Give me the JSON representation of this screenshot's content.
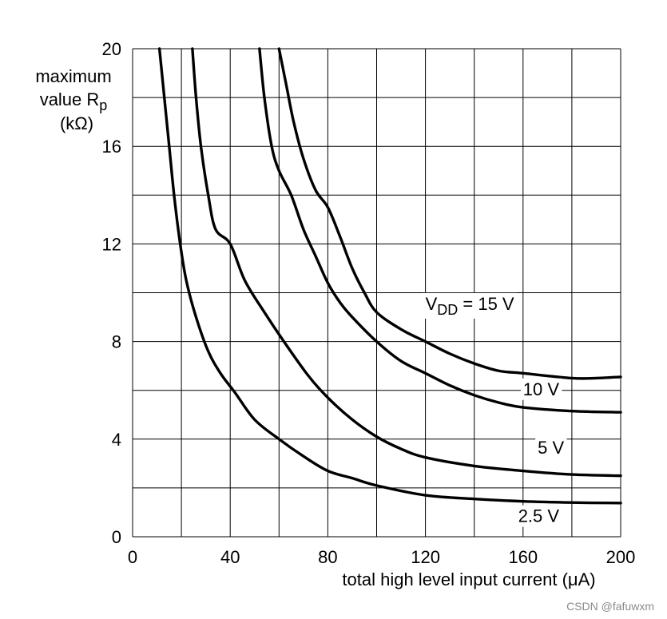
{
  "chart_data": {
    "type": "line",
    "y_label": {
      "line1": "maximum",
      "line2": "value R",
      "subscript": "p",
      "line3": "(kΩ)"
    },
    "x_label": "total high level input current (μA)",
    "xlim": [
      0,
      200
    ],
    "ylim": [
      0,
      20
    ],
    "x_ticks": [
      "0",
      "40",
      "80",
      "120",
      "160",
      "200"
    ],
    "y_ticks": [
      "0",
      "4",
      "8",
      "12",
      "16",
      "20"
    ],
    "grid": true,
    "grid_step": {
      "x": 20,
      "y": 2
    },
    "series": [
      {
        "name": "2.5 V",
        "values": [
          [
            11,
            20
          ],
          [
            13,
            18
          ],
          [
            15,
            16
          ],
          [
            17,
            14
          ],
          [
            19.5,
            12
          ],
          [
            22,
            10.5
          ],
          [
            26,
            9
          ],
          [
            31,
            7.6
          ],
          [
            36,
            6.7
          ],
          [
            42,
            5.9
          ],
          [
            50,
            4.8
          ],
          [
            60,
            4
          ],
          [
            70,
            3.3
          ],
          [
            80,
            2.7
          ],
          [
            90,
            2.4
          ],
          [
            100,
            2.1
          ],
          [
            120,
            1.7
          ],
          [
            140,
            1.55
          ],
          [
            160,
            1.45
          ],
          [
            180,
            1.4
          ],
          [
            200,
            1.38
          ]
        ]
      },
      {
        "name": "5 V",
        "values": [
          [
            24.5,
            20
          ],
          [
            26,
            18
          ],
          [
            28,
            16
          ],
          [
            31,
            14
          ],
          [
            34,
            12.6
          ],
          [
            40,
            12
          ],
          [
            46,
            10.5
          ],
          [
            54,
            9.2
          ],
          [
            62,
            8
          ],
          [
            72,
            6.6
          ],
          [
            80,
            5.7
          ],
          [
            90,
            4.8
          ],
          [
            100,
            4.1
          ],
          [
            110,
            3.6
          ],
          [
            120,
            3.25
          ],
          [
            140,
            2.9
          ],
          [
            160,
            2.7
          ],
          [
            180,
            2.55
          ],
          [
            200,
            2.5
          ]
        ]
      },
      {
        "name": "10 V",
        "values": [
          [
            52,
            20
          ],
          [
            54,
            18
          ],
          [
            57,
            16
          ],
          [
            60,
            15
          ],
          [
            65,
            14
          ],
          [
            70,
            12.6
          ],
          [
            75,
            11.5
          ],
          [
            80,
            10.4
          ],
          [
            85,
            9.6
          ],
          [
            90,
            9
          ],
          [
            100,
            8
          ],
          [
            110,
            7.2
          ],
          [
            120,
            6.7
          ],
          [
            130,
            6.2
          ],
          [
            140,
            5.8
          ],
          [
            150,
            5.5
          ],
          [
            160,
            5.3
          ],
          [
            180,
            5.15
          ],
          [
            200,
            5.1
          ]
        ]
      },
      {
        "name": "15 V",
        "values": [
          [
            60,
            20
          ],
          [
            63,
            18.5
          ],
          [
            66,
            17
          ],
          [
            70,
            15.5
          ],
          [
            75,
            14.2
          ],
          [
            80,
            13.5
          ],
          [
            85,
            12.3
          ],
          [
            90,
            11
          ],
          [
            95,
            10
          ],
          [
            100,
            9.2
          ],
          [
            110,
            8.5
          ],
          [
            120,
            8
          ],
          [
            130,
            7.5
          ],
          [
            140,
            7.1
          ],
          [
            150,
            6.8
          ],
          [
            160,
            6.7
          ],
          [
            180,
            6.5
          ],
          [
            190,
            6.5
          ],
          [
            200,
            6.55
          ]
        ]
      }
    ],
    "curve_labels": [
      {
        "series": "15 V",
        "main": "V",
        "sub": "DD",
        "rest": " = 15 V",
        "at": [
          120,
          9.3
        ]
      },
      {
        "series": "10 V",
        "text": "10 V",
        "at": [
          160,
          5.8
        ]
      },
      {
        "series": "5 V",
        "text": "5 V",
        "at": [
          166,
          3.4
        ]
      },
      {
        "series": "2.5 V",
        "text": "2.5 V",
        "at": [
          158,
          0.6
        ]
      }
    ],
    "colors": {
      "grid": "#000000",
      "curve": "#000000",
      "background": "#ffffff"
    }
  },
  "watermark": "CSDN @fafuwxm"
}
